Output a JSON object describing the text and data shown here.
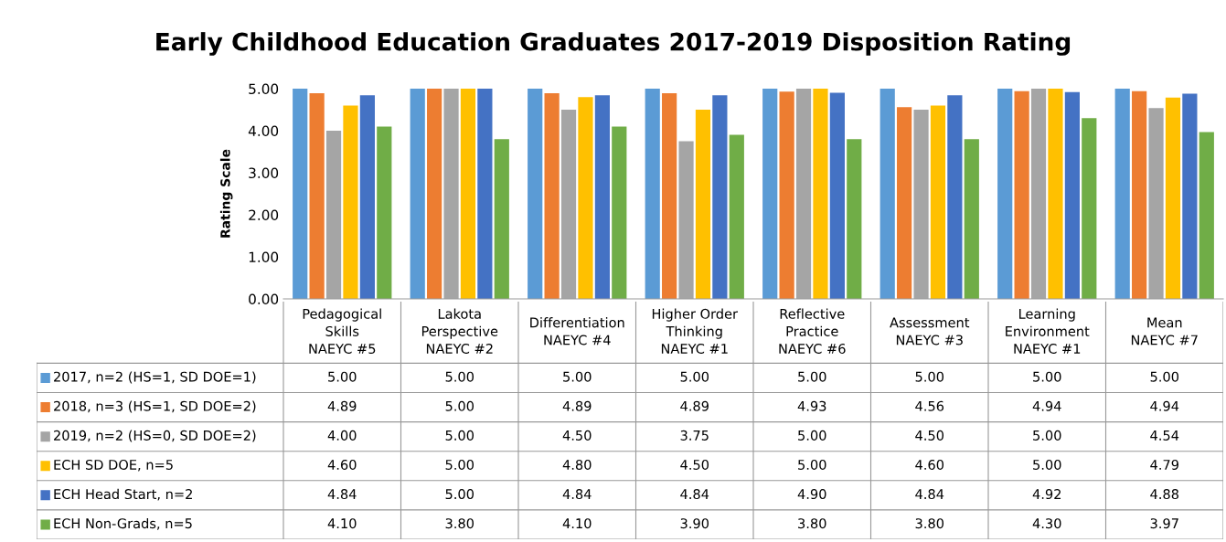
{
  "chart_data": {
    "type": "bar",
    "title": "Early Childhood Education Graduates 2017-2019 Disposition Rating",
    "ylabel": "Rating Scale",
    "categories": [
      "Pedagogical\nSkills\nNAEYC #5",
      "Lakota\nPerspective\nNAEYC #2",
      "Differentiation\nNAEYC #4",
      "Higher Order\nThinking\nNAEYC #1",
      "Reflective\nPractice\nNAEYC #6",
      "Assessment\nNAEYC #3",
      "Learning\nEnvironment\nNAEYC #1",
      "Mean\nNAEYC #7"
    ],
    "series": [
      {
        "name": "2017, n=2 (HS=1, SD DOE=1)",
        "color": "#5b9bd5",
        "values": [
          5.0,
          5.0,
          5.0,
          5.0,
          5.0,
          5.0,
          5.0,
          5.0
        ],
        "value_labels": [
          "5.00",
          "5.00",
          "5.00",
          "5.00",
          "5.00",
          "5.00",
          "5.00",
          "5.00"
        ]
      },
      {
        "name": "2018, n=3 (HS=1, SD DOE=2)",
        "color": "#ed7d31",
        "values": [
          4.89,
          5.0,
          4.89,
          4.89,
          4.93,
          4.56,
          4.94,
          4.94
        ],
        "value_labels": [
          "4.89",
          "5.00",
          "4.89",
          "4.89",
          "4.93",
          "4.56",
          "4.94",
          "4.94"
        ]
      },
      {
        "name": "2019, n=2 (HS=0, SD DOE=2)",
        "color": "#a5a5a5",
        "values": [
          4.0,
          5.0,
          4.5,
          3.75,
          5.0,
          4.5,
          5.0,
          4.54
        ],
        "value_labels": [
          "4.00",
          "5.00",
          "4.50",
          "3.75",
          "5.00",
          "4.50",
          "5.00",
          "4.54"
        ]
      },
      {
        "name": "ECH SD DOE, n=5",
        "color": "#ffc000",
        "values": [
          4.6,
          5.0,
          4.8,
          4.5,
          5.0,
          4.6,
          5.0,
          4.79
        ],
        "value_labels": [
          "4.60",
          "5.00",
          "4.80",
          "4.50",
          "5.00",
          "4.60",
          "5.00",
          "4.79"
        ]
      },
      {
        "name": "ECH Head Start, n=2",
        "color": "#4472c4",
        "values": [
          4.84,
          5.0,
          4.84,
          4.84,
          4.9,
          4.84,
          4.92,
          4.88
        ],
        "value_labels": [
          "4.84",
          "5.00",
          "4.84",
          "4.84",
          "4.90",
          "4.84",
          "4.92",
          "4.88"
        ]
      },
      {
        "name": "ECH Non-Grads, n=5",
        "color": "#70ad47",
        "values": [
          4.1,
          3.8,
          4.1,
          3.9,
          3.8,
          3.8,
          4.3,
          3.97
        ],
        "value_labels": [
          "4.10",
          "3.80",
          "4.10",
          "3.90",
          "3.80",
          "3.80",
          "4.30",
          "3.97"
        ]
      }
    ],
    "ylim": [
      0,
      5
    ],
    "yticks": [
      {
        "value": 0,
        "label": "0.00"
      },
      {
        "value": 1,
        "label": "1.00"
      },
      {
        "value": 2,
        "label": "2.00"
      },
      {
        "value": 3,
        "label": "3.00"
      },
      {
        "value": 4,
        "label": "4.00"
      },
      {
        "value": 5,
        "label": "5.00"
      }
    ],
    "grid": false,
    "legend": "bottom"
  }
}
